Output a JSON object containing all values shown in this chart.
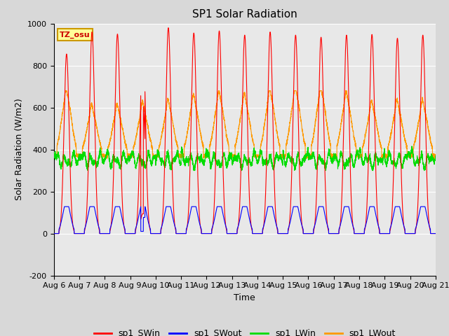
{
  "title": "SP1 Solar Radiation",
  "xlabel": "Time",
  "ylabel": "Solar Radiation (W/m2)",
  "ylim": [
    -200,
    1000
  ],
  "xlim": [
    0,
    15
  ],
  "x_tick_labels": [
    "Aug 6",
    "Aug 7",
    "Aug 8",
    "Aug 9",
    "Aug 10",
    "Aug 11",
    "Aug 12",
    "Aug 13",
    "Aug 14",
    "Aug 15",
    "Aug 16",
    "Aug 17",
    "Aug 18",
    "Aug 19",
    "Aug 20",
    "Aug 21"
  ],
  "colors": {
    "sp1_SWin": "#ff0000",
    "sp1_SWout": "#0000ff",
    "sp1_LWin": "#00dd00",
    "sp1_LWout": "#ff9900"
  },
  "annotation_text": "TZ_osu",
  "annotation_color": "#cc0000",
  "annotation_bg": "#ffff99",
  "annotation_border": "#cc9900",
  "fig_bg": "#d8d8d8",
  "ax_bg": "#e8e8e8",
  "title_fontsize": 11,
  "label_fontsize": 9,
  "tick_fontsize": 8
}
